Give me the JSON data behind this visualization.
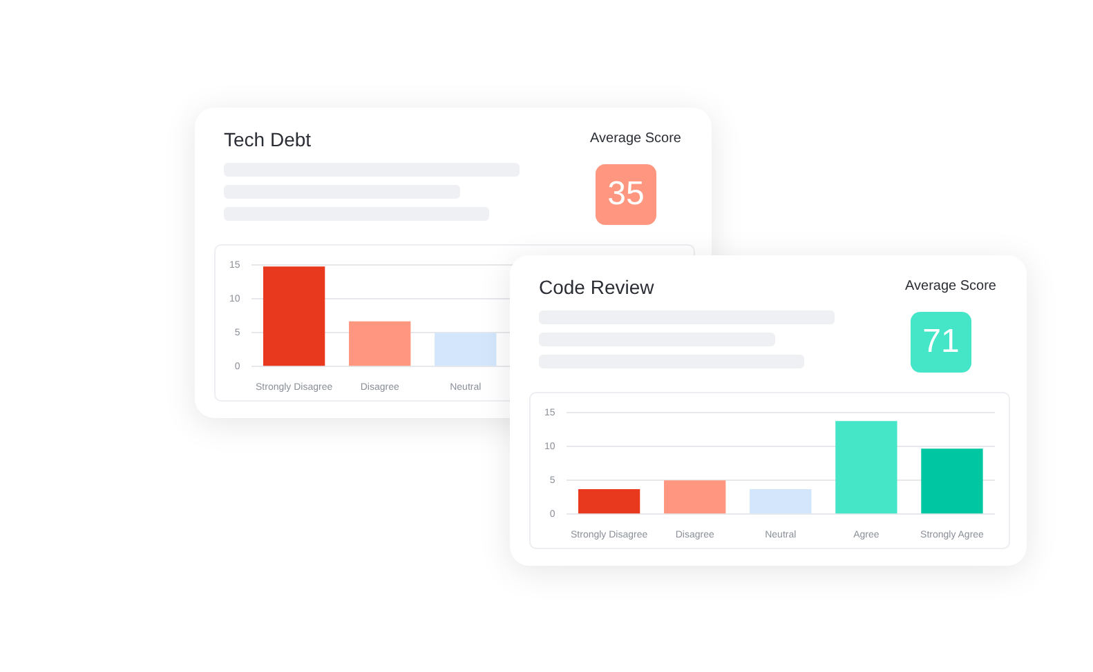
{
  "chart_data": [
    {
      "type": "bar",
      "title": "Tech Debt",
      "annotations": [
        "Average Score",
        "35"
      ],
      "categories": [
        "Strongly Disagree",
        "Disagree",
        "Neutral",
        null,
        null
      ],
      "values": [
        14.8,
        6.7,
        5.0,
        null,
        null
      ],
      "colors": [
        "#e8391e",
        "#ff9780",
        "#d3e6fb",
        "#45e6c8",
        "#00c7a2"
      ],
      "ylim": [
        0,
        15
      ],
      "yticks": [
        0,
        5,
        10,
        15
      ],
      "grid": "y",
      "legend": false
    },
    {
      "type": "bar",
      "title": "Code Review",
      "annotations": [
        "Average Score",
        "71"
      ],
      "categories": [
        "Strongly Disagree",
        "Disagree",
        "Neutral",
        "Agree",
        "Strongly Agree"
      ],
      "values": [
        3.7,
        5.0,
        3.7,
        13.8,
        9.7
      ],
      "colors": [
        "#e8391e",
        "#ff9780",
        "#d3e6fb",
        "#45e6c8",
        "#00c7a2"
      ],
      "ylim": [
        0,
        15
      ],
      "yticks": [
        0,
        5,
        10,
        15
      ],
      "grid": "y",
      "legend": false
    }
  ]
}
